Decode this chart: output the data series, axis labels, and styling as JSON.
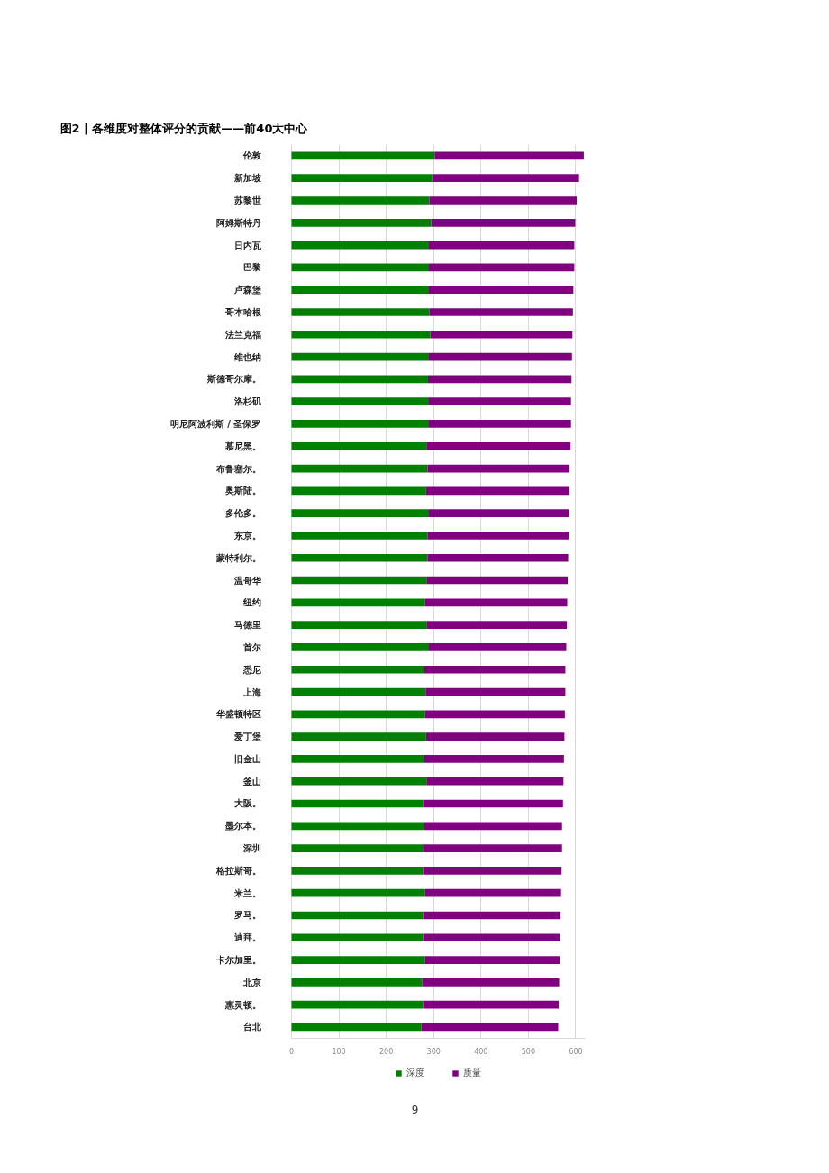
{
  "chart_data": {
    "type": "bar",
    "orientation": "horizontal",
    "stacked": true,
    "title": "图2 | 各维度对整体评分的贡献——前40大中心",
    "categories": [
      "伦敦",
      "新加坡",
      "苏黎世",
      "阿姆斯特丹",
      "日内瓦",
      "巴黎",
      "卢森堡",
      "哥本哈根",
      "法兰克福",
      "维也纳",
      "斯德哥尔摩。",
      "洛杉矶",
      "明尼阿波利斯 / 圣保罗",
      "慕尼黑。",
      "布鲁塞尔。",
      "奥斯陆。",
      "多伦多。",
      "东京。",
      "蒙特利尔。",
      "温哥华",
      "纽约",
      "马德里",
      "首尔",
      "悉尼",
      "上海",
      "华盛顿特区",
      "爱丁堡",
      "旧金山",
      "釜山",
      "大阪。",
      "墨尔本。",
      "深圳",
      "格拉斯哥。",
      "米兰。",
      "罗马。",
      "迪拜。",
      "卡尔加里。",
      "北京",
      "惠灵顿。",
      "台北"
    ],
    "series": [
      {
        "name": "深度",
        "color": "#008000",
        "values": [
          302,
          297,
          291,
          295,
          290,
          290,
          290,
          291,
          293,
          290,
          288,
          290,
          290,
          286,
          287,
          284,
          290,
          287,
          287,
          286,
          282,
          286,
          290,
          280,
          283,
          282,
          284,
          280,
          286,
          278,
          280,
          279,
          278,
          282,
          278,
          278,
          282,
          276,
          278,
          274
        ]
      },
      {
        "name": "质量",
        "color": "#800080",
        "values": [
          315,
          310,
          311,
          304,
          307,
          307,
          305,
          303,
          300,
          302,
          303,
          300,
          300,
          303,
          300,
          303,
          296,
          298,
          297,
          297,
          300,
          295,
          290,
          298,
          295,
          295,
          292,
          295,
          288,
          295,
          291,
          292,
          292,
          287,
          290,
          289,
          284,
          289,
          286,
          289
        ]
      }
    ],
    "xlim": [
      0,
      620
    ],
    "xticks": [
      0,
      100,
      200,
      300,
      400,
      500,
      600
    ],
    "grid": "x",
    "legend": "bottom",
    "annotations": [
      "9"
    ]
  }
}
